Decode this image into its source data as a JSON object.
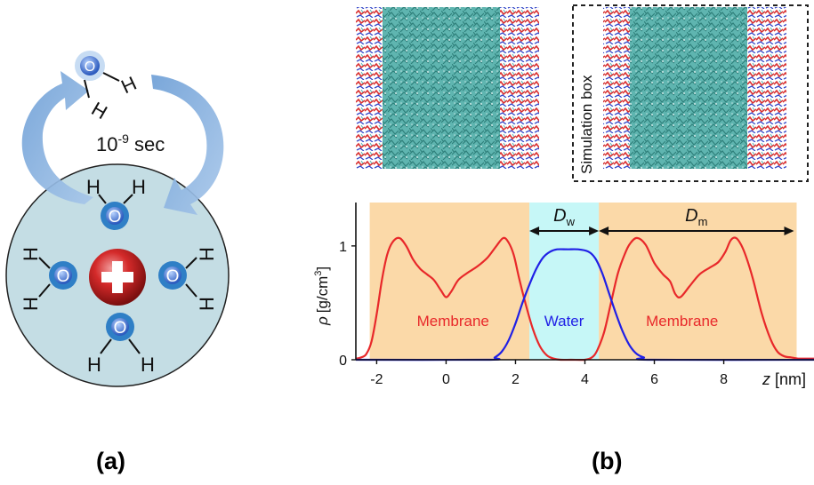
{
  "panel_a": {
    "caption": "(a)",
    "exchange_time": "10",
    "exchange_time_exp": "-9",
    "exchange_time_unit": " sec",
    "oxygen": "O",
    "hydrogen": "H",
    "ion_sign": "+"
  },
  "panel_b": {
    "caption": "(b)",
    "box_label": "Simulation box",
    "dw_symbol": "D",
    "dw_sub": "w",
    "dm_symbol": "D",
    "dm_sub": "m",
    "membrane_left": "Membrane",
    "water": "Water",
    "membrane_right": "Membrane",
    "ylabel_rho": "ρ",
    "ylabel_unit": "[g/cm",
    "ylabel_exp": "3",
    "ylabel_close": "]",
    "xlabel_z": "z",
    "xlabel_unit": "[nm]",
    "colors": {
      "membrane": "#e8282a",
      "water": "#2020e6",
      "membrane_bg": "#fbd9a8",
      "water_bg": "#c6f7f7"
    }
  },
  "chart_data": {
    "type": "line",
    "xlim": [
      -2.6,
      10.6
    ],
    "ylim": [
      0,
      1.35
    ],
    "x_ticks": [
      "-2",
      "0",
      "2",
      "4",
      "6",
      "8"
    ],
    "x_tick_values": [
      -2,
      0,
      2,
      4,
      6,
      8
    ],
    "y_ticks": [
      "0",
      "1"
    ],
    "y_tick_values": [
      0,
      1
    ],
    "regions": [
      {
        "label": "Membrane",
        "x": [
          -2.2,
          2.4
        ]
      },
      {
        "label": "Water",
        "x": [
          2.4,
          4.4
        ]
      },
      {
        "label": "Membrane",
        "x": [
          4.4,
          10.1
        ]
      }
    ],
    "series": [
      {
        "name": "Membrane",
        "x": [
          -2.6,
          -2.45,
          -2.3,
          -2.15,
          -2.0,
          -1.85,
          -1.7,
          -1.55,
          -1.35,
          -1.15,
          -0.95,
          -0.75,
          -0.55,
          -0.35,
          -0.15,
          0.0,
          0.15,
          0.35,
          0.6,
          0.9,
          1.2,
          1.45,
          1.65,
          1.8,
          1.95,
          2.1,
          2.3,
          2.5,
          2.7,
          2.9,
          3.1,
          3.3,
          3.6,
          4.0,
          4.2,
          4.35,
          4.55,
          4.75,
          4.95,
          5.15,
          5.3,
          5.5,
          5.75,
          6.0,
          6.25,
          6.45,
          6.6,
          6.75,
          7.0,
          7.3,
          7.6,
          7.85,
          8.05,
          8.2,
          8.35,
          8.5,
          8.65,
          8.85,
          9.1,
          9.35,
          9.55,
          9.75,
          9.95,
          10.15,
          10.35,
          10.6
        ],
        "y": [
          0.01,
          0.02,
          0.05,
          0.16,
          0.4,
          0.7,
          0.92,
          1.03,
          1.07,
          1.0,
          0.88,
          0.8,
          0.75,
          0.7,
          0.61,
          0.55,
          0.6,
          0.7,
          0.76,
          0.82,
          0.9,
          1.0,
          1.07,
          1.03,
          0.92,
          0.72,
          0.48,
          0.27,
          0.12,
          0.04,
          0.01,
          0.0,
          0.0,
          0.0,
          0.02,
          0.08,
          0.24,
          0.5,
          0.76,
          0.93,
          1.02,
          1.07,
          1.01,
          0.85,
          0.75,
          0.69,
          0.58,
          0.55,
          0.64,
          0.75,
          0.81,
          0.86,
          0.95,
          1.05,
          1.07,
          1.01,
          0.9,
          0.7,
          0.4,
          0.18,
          0.07,
          0.03,
          0.02,
          0.01,
          0.01,
          0.01
        ]
      },
      {
        "name": "Water",
        "x": [
          -2.6,
          1.2,
          1.4,
          1.6,
          1.8,
          2.0,
          2.2,
          2.4,
          2.6,
          2.8,
          3.0,
          3.2,
          3.5,
          3.8,
          4.1,
          4.3,
          4.5,
          4.7,
          4.9,
          5.1,
          5.3,
          5.5,
          5.7,
          5.9,
          10.6
        ],
        "y": [
          0.0,
          0.0,
          0.02,
          0.07,
          0.17,
          0.32,
          0.5,
          0.66,
          0.8,
          0.9,
          0.95,
          0.97,
          0.97,
          0.97,
          0.95,
          0.89,
          0.76,
          0.58,
          0.4,
          0.24,
          0.12,
          0.05,
          0.02,
          0.0,
          0.0
        ]
      }
    ]
  }
}
